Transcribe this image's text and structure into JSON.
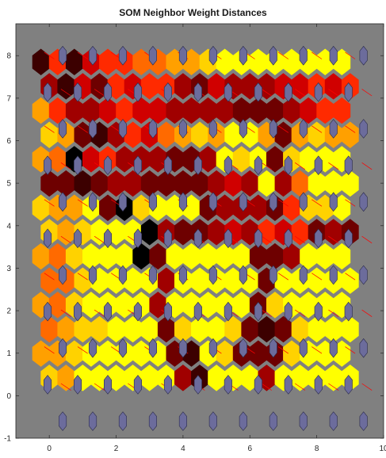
{
  "chart_data": {
    "type": "heatmap",
    "title": "SOM Neighbor Weight Distances",
    "xlabel": "",
    "ylabel": "",
    "xlim": [
      -1,
      10
    ],
    "ylim": [
      -1,
      8.75
    ],
    "x_ticks": [
      "0",
      "2",
      "4",
      "6",
      "8",
      "10"
    ],
    "x_tick_values": [
      0,
      2,
      4,
      6,
      8,
      10
    ],
    "y_ticks": [
      "-1",
      "0",
      "1",
      "2",
      "3",
      "4",
      "5",
      "6",
      "7",
      "8"
    ],
    "y_tick_values": [
      -1,
      0,
      1,
      2,
      3,
      4,
      5,
      6,
      7,
      8
    ],
    "grid": false,
    "topology": "hextop",
    "grid_size": [
      10,
      10
    ],
    "neuron_color": "#6c6c9c",
    "background_color": "#808080",
    "line_color": "#ff0000",
    "colormap": [
      "#ffff00",
      "#ffd200",
      "#ffa000",
      "#ff6a00",
      "#ff2a00",
      "#d00000",
      "#a00000",
      "#6e0000",
      "#3c0000",
      "#000000"
    ],
    "neighbor_distance_rows": [
      [
        1,
        0,
        0,
        0,
        0,
        0,
        0,
        0,
        0
      ],
      [
        1,
        1,
        0,
        0,
        0,
        0,
        0,
        0,
        0
      ],
      [
        0,
        0,
        0,
        0,
        0,
        0,
        0,
        0,
        0
      ],
      [
        0,
        0,
        0,
        0,
        0,
        0,
        0,
        0,
        0
      ],
      [
        0,
        0,
        0,
        0,
        0,
        0,
        0,
        0,
        0
      ],
      [
        0,
        0,
        0,
        0,
        0,
        0,
        0,
        0,
        0
      ],
      [
        0,
        0,
        0,
        0,
        0,
        0,
        0,
        0,
        0
      ],
      [
        0,
        0,
        0,
        0,
        0,
        0,
        0,
        0,
        0
      ],
      [
        0,
        0,
        0,
        0,
        0,
        0,
        0,
        0,
        0
      ],
      [
        0,
        0,
        0,
        0,
        0,
        0,
        0,
        0,
        0
      ]
    ],
    "cell_levels": [
      [
        8,
        4,
        8,
        5,
        4,
        4,
        3,
        3,
        2,
        2,
        1,
        0,
        0,
        0,
        0,
        0,
        0,
        0,
        0
      ],
      [
        6,
        8,
        5,
        7,
        4,
        5,
        4,
        4,
        6,
        7,
        5,
        6,
        6,
        6,
        5,
        5,
        4,
        5,
        4
      ],
      [
        2,
        4,
        6,
        6,
        5,
        4,
        5,
        5,
        6,
        6,
        6,
        6,
        7,
        7,
        7,
        6,
        5,
        4,
        4
      ],
      [
        1,
        2,
        7,
        8,
        6,
        4,
        5,
        3,
        2,
        1,
        2,
        0,
        0,
        2,
        7,
        2,
        1,
        2,
        2
      ],
      [
        2,
        3,
        9,
        5,
        4,
        6,
        6,
        6,
        7,
        7,
        6,
        0,
        1,
        0,
        7,
        1,
        0,
        0,
        0
      ],
      [
        7,
        7,
        8,
        7,
        6,
        6,
        7,
        7,
        7,
        7,
        6,
        5,
        6,
        0,
        6,
        3,
        0,
        0,
        0
      ],
      [
        1,
        2,
        2,
        0,
        7,
        9,
        1,
        0,
        0,
        0,
        7,
        6,
        6,
        6,
        7,
        4,
        1,
        1,
        0
      ],
      [
        1,
        2,
        1,
        0,
        0,
        0,
        9,
        6,
        7,
        7,
        6,
        5,
        6,
        4,
        5,
        4,
        7,
        6,
        7
      ],
      [
        2,
        3,
        1,
        0,
        0,
        0,
        9,
        7,
        0,
        0,
        0,
        0,
        0,
        7,
        7,
        6,
        0,
        0,
        0
      ],
      [
        3,
        3,
        1,
        0,
        0,
        0,
        0,
        6,
        0,
        0,
        0,
        0,
        0,
        7,
        0,
        0,
        0,
        0,
        0
      ],
      [
        2,
        3,
        1,
        0,
        0,
        0,
        0,
        6,
        0,
        0,
        0,
        0,
        0,
        7,
        1,
        0,
        0,
        0,
        0
      ],
      [
        3,
        2,
        1,
        1,
        0,
        0,
        0,
        7,
        1,
        0,
        0,
        1,
        7,
        8,
        7,
        1,
        0,
        0,
        0
      ],
      [
        2,
        2,
        1,
        0,
        0,
        0,
        0,
        0,
        7,
        8,
        0,
        1,
        7,
        7,
        7,
        1,
        0,
        0,
        0
      ],
      [
        1,
        2,
        0,
        0,
        0,
        0,
        0,
        0,
        6,
        8,
        0,
        0,
        0,
        6,
        0,
        0,
        0,
        0,
        0
      ]
    ]
  }
}
